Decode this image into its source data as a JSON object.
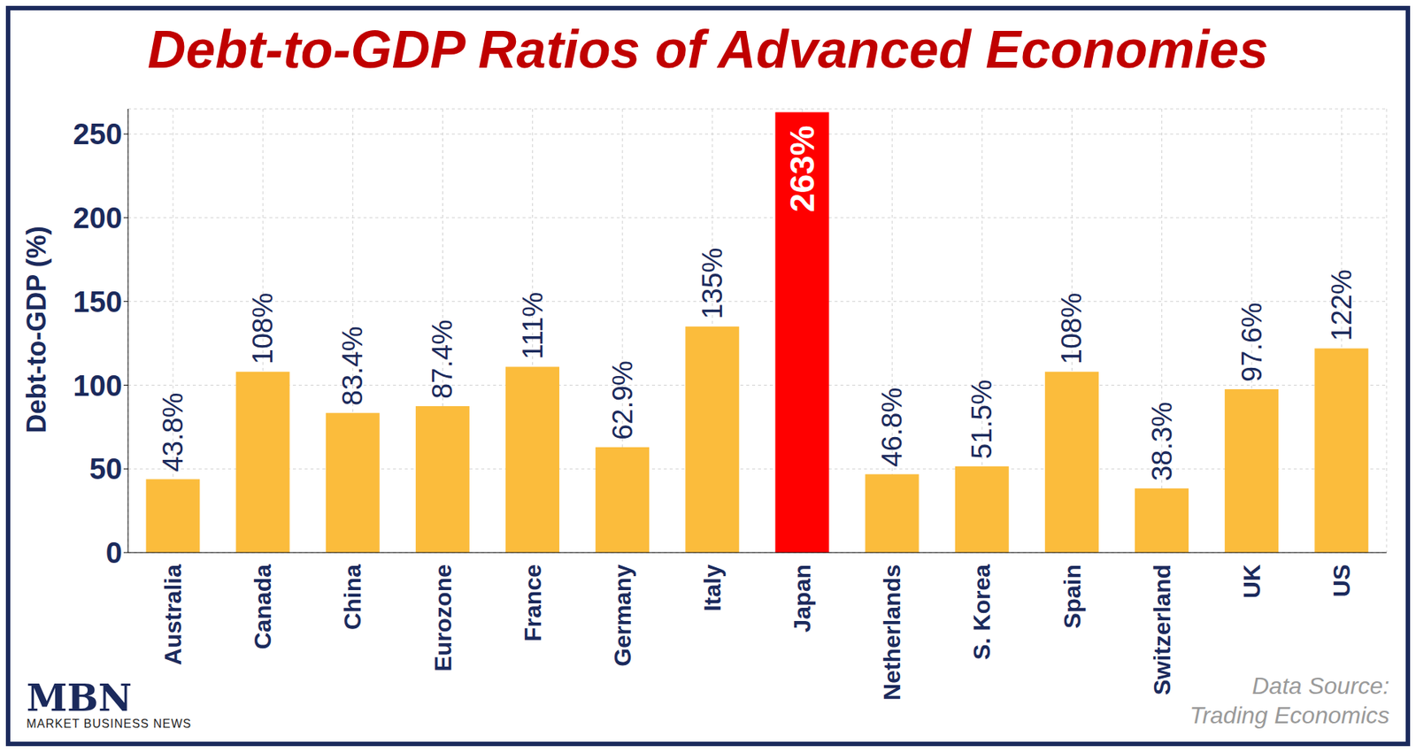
{
  "chart_data": {
    "type": "bar",
    "title": "Debt-to-GDP Ratios of Advanced Economies",
    "y_label": "Debt-to-GDP (%)",
    "categories": [
      "Australia",
      "Canada",
      "China",
      "Eurozone",
      "France",
      "Germany",
      "Italy",
      "Japan",
      "Netherlands",
      "S. Korea",
      "Spain",
      "Switzerland",
      "UK",
      "US"
    ],
    "values": [
      43.8,
      108,
      83.4,
      87.4,
      111,
      62.9,
      135,
      263,
      46.8,
      51.5,
      108,
      38.3,
      97.6,
      122
    ],
    "value_labels": [
      "43.8%",
      "108%",
      "83.4%",
      "87.4%",
      "111%",
      "62.9%",
      "135%",
      "263%",
      "46.8%",
      "51.5%",
      "108%",
      "38.3%",
      "97.6%",
      "122%"
    ],
    "colors": [
      "#fbbc3c",
      "#fbbc3c",
      "#fbbc3c",
      "#fbbc3c",
      "#fbbc3c",
      "#fbbc3c",
      "#fbbc3c",
      "#ff0000",
      "#fbbc3c",
      "#fbbc3c",
      "#fbbc3c",
      "#fbbc3c",
      "#fbbc3c",
      "#fbbc3c"
    ],
    "ylim": [
      0,
      265
    ],
    "yticks": [
      0,
      50,
      100,
      150,
      200,
      250
    ],
    "grid": true,
    "data_labels": true,
    "annotations": [
      "Data Source:",
      "Trading Economics"
    ],
    "logo": [
      "MBN",
      "MARKET BUSINESS NEWS"
    ]
  }
}
